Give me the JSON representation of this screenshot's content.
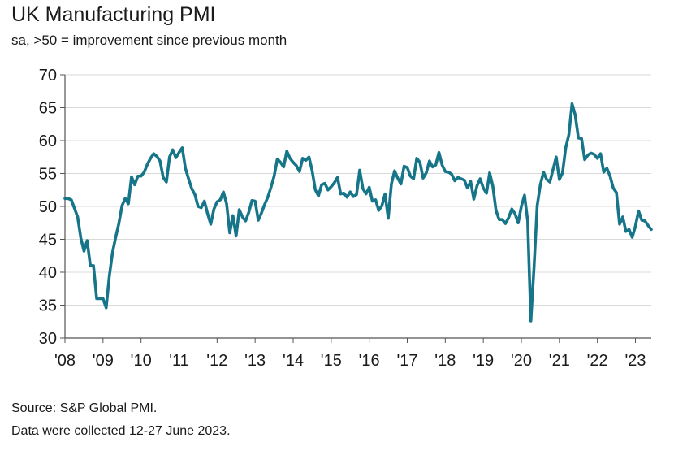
{
  "header": {
    "title": "UK Manufacturing PMI",
    "subtitle": "sa, >50 = improvement since previous month"
  },
  "footer": {
    "source": "Source: S&P Global PMI.",
    "note": "Data were collected 12-27 June 2023."
  },
  "colors": {
    "line": "#17758a",
    "axis": "#555555",
    "grid": "#d9d9d9"
  },
  "chart_data": {
    "type": "line",
    "title": "UK Manufacturing PMI",
    "subtitle": "sa, >50 = improvement since previous month",
    "xlabel": "",
    "ylabel": "",
    "ylim": [
      30,
      70
    ],
    "yticks": [
      30,
      35,
      40,
      45,
      50,
      55,
      60,
      65,
      70
    ],
    "xlim": [
      "2008-01",
      "2023-06"
    ],
    "xtick_labels": [
      "'08",
      "'09",
      "'10",
      "'11",
      "'12",
      "'13",
      "'14",
      "'15",
      "'16",
      "'17",
      "'18",
      "'19",
      "'20",
      "'21",
      "'22",
      "'23"
    ],
    "xtick_dates": [
      "2008-01",
      "2009-01",
      "2010-01",
      "2011-01",
      "2012-01",
      "2013-01",
      "2014-01",
      "2015-01",
      "2016-01",
      "2017-01",
      "2018-01",
      "2019-01",
      "2020-01",
      "2021-01",
      "2022-01",
      "2023-01"
    ],
    "grid": "horizontal",
    "series": [
      {
        "name": "",
        "x": [
          "2008-01",
          "2008-02",
          "2008-03",
          "2008-04",
          "2008-05",
          "2008-06",
          "2008-07",
          "2008-08",
          "2008-09",
          "2008-10",
          "2008-11",
          "2008-12",
          "2009-01",
          "2009-02",
          "2009-03",
          "2009-04",
          "2009-05",
          "2009-06",
          "2009-07",
          "2009-08",
          "2009-09",
          "2009-10",
          "2009-11",
          "2009-12",
          "2010-01",
          "2010-02",
          "2010-03",
          "2010-04",
          "2010-05",
          "2010-06",
          "2010-07",
          "2010-08",
          "2010-09",
          "2010-10",
          "2010-11",
          "2010-12",
          "2011-01",
          "2011-02",
          "2011-03",
          "2011-04",
          "2011-05",
          "2011-06",
          "2011-07",
          "2011-08",
          "2011-09",
          "2011-10",
          "2011-11",
          "2011-12",
          "2012-01",
          "2012-02",
          "2012-03",
          "2012-04",
          "2012-05",
          "2012-06",
          "2012-07",
          "2012-08",
          "2012-09",
          "2012-10",
          "2012-11",
          "2012-12",
          "2013-01",
          "2013-02",
          "2013-03",
          "2013-04",
          "2013-05",
          "2013-06",
          "2013-07",
          "2013-08",
          "2013-09",
          "2013-10",
          "2013-11",
          "2013-12",
          "2014-01",
          "2014-02",
          "2014-03",
          "2014-04",
          "2014-05",
          "2014-06",
          "2014-07",
          "2014-08",
          "2014-09",
          "2014-10",
          "2014-11",
          "2014-12",
          "2015-01",
          "2015-02",
          "2015-03",
          "2015-04",
          "2015-05",
          "2015-06",
          "2015-07",
          "2015-08",
          "2015-09",
          "2015-10",
          "2015-11",
          "2015-12",
          "2016-01",
          "2016-02",
          "2016-03",
          "2016-04",
          "2016-05",
          "2016-06",
          "2016-07",
          "2016-08",
          "2016-09",
          "2016-10",
          "2016-11",
          "2016-12",
          "2017-01",
          "2017-02",
          "2017-03",
          "2017-04",
          "2017-05",
          "2017-06",
          "2017-07",
          "2017-08",
          "2017-09",
          "2017-10",
          "2017-11",
          "2017-12",
          "2018-01",
          "2018-02",
          "2018-03",
          "2018-04",
          "2018-05",
          "2018-06",
          "2018-07",
          "2018-08",
          "2018-09",
          "2018-10",
          "2018-11",
          "2018-12",
          "2019-01",
          "2019-02",
          "2019-03",
          "2019-04",
          "2019-05",
          "2019-06",
          "2019-07",
          "2019-08",
          "2019-09",
          "2019-10",
          "2019-11",
          "2019-12",
          "2020-01",
          "2020-02",
          "2020-03",
          "2020-04",
          "2020-05",
          "2020-06",
          "2020-07",
          "2020-08",
          "2020-09",
          "2020-10",
          "2020-11",
          "2020-12",
          "2021-01",
          "2021-02",
          "2021-03",
          "2021-04",
          "2021-05",
          "2021-06",
          "2021-07",
          "2021-08",
          "2021-09",
          "2021-10",
          "2021-11",
          "2021-12",
          "2022-01",
          "2022-02",
          "2022-03",
          "2022-04",
          "2022-05",
          "2022-06",
          "2022-07",
          "2022-08",
          "2022-09",
          "2022-10",
          "2022-11",
          "2022-12",
          "2023-01",
          "2023-02",
          "2023-03",
          "2023-04",
          "2023-05",
          "2023-06"
        ],
        "values": [
          51.2,
          51.2,
          51.0,
          49.7,
          48.4,
          45.2,
          43.2,
          44.8,
          41.0,
          41.0,
          36.0,
          36.0,
          36.0,
          34.6,
          39.4,
          43.0,
          45.3,
          47.4,
          50.1,
          51.2,
          50.4,
          54.5,
          53.3,
          54.6,
          54.6,
          55.2,
          56.4,
          57.3,
          58.0,
          57.6,
          56.9,
          54.4,
          53.7,
          57.5,
          58.6,
          57.4,
          58.2,
          58.9,
          55.8,
          54.2,
          52.7,
          51.8,
          50.0,
          49.8,
          50.8,
          48.9,
          47.3,
          49.6,
          50.7,
          51.0,
          52.2,
          50.4,
          46.0,
          48.6,
          45.5,
          49.5,
          48.4,
          47.8,
          49.1,
          50.9,
          50.8,
          47.9,
          49.0,
          50.3,
          51.4,
          52.9,
          54.6,
          57.2,
          56.7,
          56.0,
          58.4,
          57.3,
          56.7,
          56.2,
          55.3,
          57.3,
          57.0,
          57.5,
          55.4,
          52.5,
          51.6,
          53.3,
          53.5,
          52.5,
          53.0,
          53.6,
          54.4,
          51.9,
          52.0,
          51.4,
          52.2,
          51.5,
          51.8,
          55.5,
          52.7,
          51.9,
          52.9,
          50.8,
          51.0,
          49.4,
          50.1,
          51.9,
          48.2,
          53.4,
          55.4,
          54.3,
          53.4,
          56.1,
          55.9,
          54.6,
          54.2,
          57.3,
          56.7,
          54.3,
          55.1,
          56.9,
          56.0,
          56.3,
          58.2,
          56.3,
          55.3,
          55.2,
          54.9,
          53.9,
          54.4,
          54.2,
          54.0,
          52.8,
          53.8,
          51.1,
          53.1,
          54.2,
          52.8,
          52.0,
          55.1,
          53.1,
          49.4,
          48.0,
          48.0,
          47.4,
          48.3,
          49.6,
          48.9,
          47.5,
          50.0,
          51.7,
          47.8,
          32.6,
          40.7,
          50.1,
          53.3,
          55.2,
          54.1,
          53.7,
          55.6,
          57.5,
          54.1,
          55.1,
          58.9,
          60.9,
          65.6,
          63.9,
          60.4,
          60.3,
          57.1,
          57.8,
          58.1,
          57.9,
          57.3,
          58.0,
          55.2,
          55.8,
          54.6,
          52.8,
          52.1,
          47.3,
          48.4,
          46.2,
          46.5,
          45.3,
          47.0,
          49.3,
          47.9,
          47.8,
          47.1,
          46.5
        ]
      }
    ]
  }
}
